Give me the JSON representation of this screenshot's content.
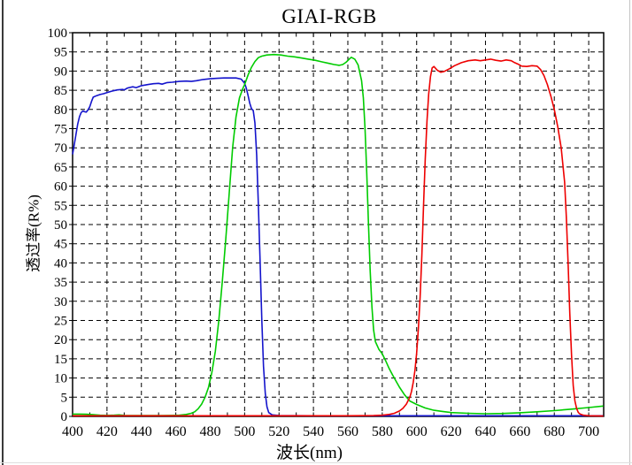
{
  "window": {
    "background": "#ffffff",
    "left_edge_color": "#3a3a3a",
    "right_edge_color": "#c4c4c4",
    "bottom_edge_color": "#dedede"
  },
  "chart_data": {
    "type": "line",
    "title": "GIAI-RGB",
    "xlabel": "波长(nm)",
    "ylabel": "透过率(R%)",
    "xlim": [
      400,
      708.7
    ],
    "ylim": [
      0,
      100
    ],
    "x_ticks": [
      400,
      420,
      440,
      460,
      480,
      500,
      520,
      540,
      560,
      580,
      600,
      620,
      640,
      660,
      680,
      700
    ],
    "x_minor_step": 10,
    "y_ticks": [
      0,
      5,
      10,
      15,
      20,
      25,
      30,
      35,
      40,
      45,
      50,
      55,
      60,
      65,
      70,
      75,
      80,
      85,
      90,
      95,
      100
    ],
    "grid": "dashed-black-major",
    "legend": "none",
    "axis_color": "#000000",
    "series": [
      {
        "name": "blue-channel",
        "color": "#1414cc",
        "points": [
          [
            400,
            68.3
          ],
          [
            401,
            70.8
          ],
          [
            402,
            73.6
          ],
          [
            403,
            76.2
          ],
          [
            404,
            78.1
          ],
          [
            405,
            79.2
          ],
          [
            406,
            79.6
          ],
          [
            407,
            79.4
          ],
          [
            408,
            79.3
          ],
          [
            409,
            79.9
          ],
          [
            410,
            80.7
          ],
          [
            411,
            82.1
          ],
          [
            412,
            83.2
          ],
          [
            414,
            83.6
          ],
          [
            416,
            83.9
          ],
          [
            418,
            84.1
          ],
          [
            420,
            84.4
          ],
          [
            423,
            84.8
          ],
          [
            426,
            85.1
          ],
          [
            429,
            85.2
          ],
          [
            430,
            85.1
          ],
          [
            432,
            85.6
          ],
          [
            435,
            85.9
          ],
          [
            437,
            85.7
          ],
          [
            440,
            86.2
          ],
          [
            444,
            86.5
          ],
          [
            447,
            86.7
          ],
          [
            450,
            86.8
          ],
          [
            452,
            86.6
          ],
          [
            455,
            87.0
          ],
          [
            458,
            87.1
          ],
          [
            462,
            87.3
          ],
          [
            466,
            87.4
          ],
          [
            469,
            87.3
          ],
          [
            472,
            87.5
          ],
          [
            476,
            87.8
          ],
          [
            480,
            88.0
          ],
          [
            484,
            88.1
          ],
          [
            488,
            88.2
          ],
          [
            492,
            88.2
          ],
          [
            495,
            88.2
          ],
          [
            498,
            87.9
          ],
          [
            500,
            86.8
          ],
          [
            501,
            85.5
          ],
          [
            502,
            83.6
          ],
          [
            503,
            81.6
          ],
          [
            504,
            80.2
          ],
          [
            505,
            79.7
          ],
          [
            506,
            76.5
          ],
          [
            507,
            68.0
          ],
          [
            508,
            55.0
          ],
          [
            509,
            40.0
          ],
          [
            510,
            25.0
          ],
          [
            511,
            13.0
          ],
          [
            512,
            6.0
          ],
          [
            513,
            2.5
          ],
          [
            514,
            1.0
          ],
          [
            516,
            0.4
          ],
          [
            520,
            0.2
          ],
          [
            540,
            0.15
          ],
          [
            580,
            0.15
          ],
          [
            620,
            0.15
          ],
          [
            660,
            0.15
          ],
          [
            700,
            0.15
          ],
          [
            708.5,
            0.15
          ]
        ]
      },
      {
        "name": "green-channel",
        "color": "#00cc00",
        "points": [
          [
            400,
            0.6
          ],
          [
            404,
            0.6
          ],
          [
            408,
            0.55
          ],
          [
            412,
            0.45
          ],
          [
            416,
            0.3
          ],
          [
            420,
            0.25
          ],
          [
            424,
            0.3
          ],
          [
            427,
            0.4
          ],
          [
            430,
            0.25
          ],
          [
            435,
            0.2
          ],
          [
            440,
            0.2
          ],
          [
            446,
            0.2
          ],
          [
            452,
            0.2
          ],
          [
            458,
            0.25
          ],
          [
            462,
            0.3
          ],
          [
            466,
            0.5
          ],
          [
            469,
            0.8
          ],
          [
            471,
            1.2
          ],
          [
            473,
            2.0
          ],
          [
            475,
            3.2
          ],
          [
            477,
            5.0
          ],
          [
            479,
            7.5
          ],
          [
            481,
            11.5
          ],
          [
            483,
            17.0
          ],
          [
            485,
            25.0
          ],
          [
            487,
            35.0
          ],
          [
            489,
            46.0
          ],
          [
            491,
            58.0
          ],
          [
            493,
            70.0
          ],
          [
            495,
            78.0
          ],
          [
            497,
            83.0
          ],
          [
            499,
            85.5
          ],
          [
            500,
            86.5
          ],
          [
            502,
            89.0
          ],
          [
            504,
            91.0
          ],
          [
            506,
            92.5
          ],
          [
            508,
            93.5
          ],
          [
            510,
            93.9
          ],
          [
            513,
            94.2
          ],
          [
            517,
            94.3
          ],
          [
            521,
            94.2
          ],
          [
            525,
            93.9
          ],
          [
            529,
            93.7
          ],
          [
            533,
            93.4
          ],
          [
            537,
            93.1
          ],
          [
            541,
            92.8
          ],
          [
            545,
            92.4
          ],
          [
            549,
            92.0
          ],
          [
            552,
            91.7
          ],
          [
            555,
            91.5
          ],
          [
            557,
            91.7
          ],
          [
            559,
            92.3
          ],
          [
            561,
            93.2
          ],
          [
            562,
            93.6
          ],
          [
            564,
            93.1
          ],
          [
            566,
            91.6
          ],
          [
            568,
            87.5
          ],
          [
            569,
            83.0
          ],
          [
            570,
            75.0
          ],
          [
            571,
            63.0
          ],
          [
            572,
            50.0
          ],
          [
            573,
            38.0
          ],
          [
            574,
            28.5
          ],
          [
            575,
            22.5
          ],
          [
            576,
            19.5
          ],
          [
            578,
            17.5
          ],
          [
            580,
            16.3
          ],
          [
            582,
            14.5
          ],
          [
            584,
            12.5
          ],
          [
            586,
            10.8
          ],
          [
            588,
            9.2
          ],
          [
            590,
            7.6
          ],
          [
            593,
            5.6
          ],
          [
            596,
            4.0
          ],
          [
            600,
            3.1
          ],
          [
            605,
            2.2
          ],
          [
            610,
            1.6
          ],
          [
            615,
            1.3
          ],
          [
            620,
            1.0
          ],
          [
            630,
            0.8
          ],
          [
            640,
            0.7
          ],
          [
            650,
            0.75
          ],
          [
            660,
            0.95
          ],
          [
            670,
            1.2
          ],
          [
            680,
            1.5
          ],
          [
            690,
            1.9
          ],
          [
            700,
            2.3
          ],
          [
            708.5,
            2.7
          ]
        ]
      },
      {
        "name": "red-channel",
        "color": "#ee0000",
        "points": [
          [
            400,
            0.15
          ],
          [
            450,
            0.15
          ],
          [
            500,
            0.15
          ],
          [
            540,
            0.15
          ],
          [
            560,
            0.15
          ],
          [
            575,
            0.2
          ],
          [
            580,
            0.3
          ],
          [
            584,
            0.5
          ],
          [
            587,
            0.8
          ],
          [
            590,
            1.4
          ],
          [
            592,
            2.1
          ],
          [
            594,
            3.2
          ],
          [
            596,
            5.0
          ],
          [
            597,
            6.5
          ],
          [
            598,
            8.8
          ],
          [
            599,
            12.0
          ],
          [
            600,
            16.5
          ],
          [
            601,
            23.0
          ],
          [
            602,
            31.0
          ],
          [
            603,
            42.0
          ],
          [
            604,
            55.0
          ],
          [
            605,
            67.0
          ],
          [
            606,
            77.0
          ],
          [
            607,
            84.0
          ],
          [
            608,
            88.5
          ],
          [
            609,
            90.8
          ],
          [
            610,
            91.2
          ],
          [
            612,
            90.2
          ],
          [
            614,
            89.7
          ],
          [
            616,
            89.9
          ],
          [
            619,
            90.6
          ],
          [
            622,
            91.4
          ],
          [
            626,
            92.2
          ],
          [
            630,
            92.7
          ],
          [
            634,
            92.9
          ],
          [
            637,
            92.7
          ],
          [
            640,
            92.9
          ],
          [
            643,
            93.1
          ],
          [
            646,
            92.8
          ],
          [
            649,
            92.6
          ],
          [
            652,
            92.9
          ],
          [
            655,
            92.7
          ],
          [
            657,
            92.2
          ],
          [
            659,
            91.8
          ],
          [
            661,
            91.3
          ],
          [
            664,
            91.2
          ],
          [
            667,
            91.4
          ],
          [
            670,
            91.3
          ],
          [
            672,
            90.4
          ],
          [
            674,
            88.8
          ],
          [
            676,
            86.5
          ],
          [
            678,
            83.5
          ],
          [
            680,
            80.0
          ],
          [
            682,
            75.5
          ],
          [
            684,
            70.0
          ],
          [
            686,
            61.0
          ],
          [
            687,
            52.0
          ],
          [
            688,
            40.0
          ],
          [
            689,
            27.0
          ],
          [
            690,
            16.0
          ],
          [
            691,
            8.0
          ],
          [
            692,
            4.0
          ],
          [
            693,
            2.0
          ],
          [
            694,
            1.0
          ],
          [
            695,
            0.6
          ],
          [
            697,
            0.3
          ],
          [
            700,
            0.15
          ],
          [
            708.5,
            0.1
          ]
        ]
      }
    ]
  }
}
